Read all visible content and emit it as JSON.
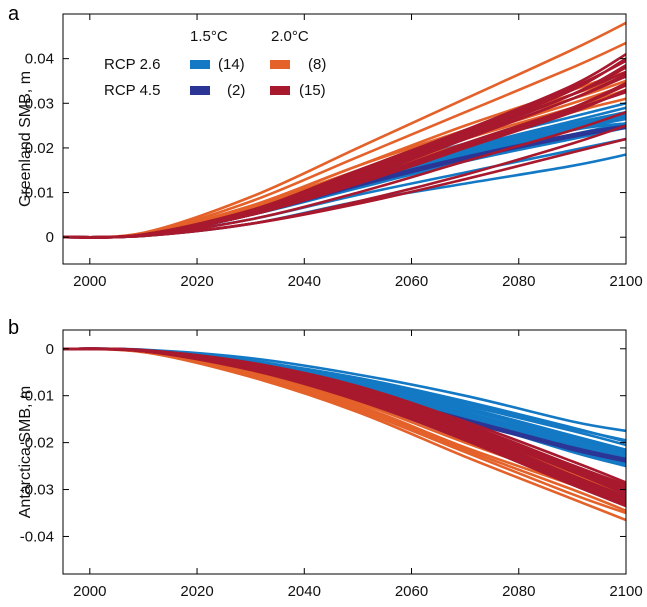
{
  "chart_data": [
    {
      "panel": "a",
      "type": "line",
      "ylabel": "Greenland SMB, m",
      "xlim": [
        1995,
        2100
      ],
      "ylim": [
        -0.006,
        0.05
      ],
      "xticks": [
        "2000",
        "2020",
        "2040",
        "2060",
        "2080",
        "2100"
      ],
      "yticks": [
        "0",
        "0.01",
        "0.02",
        "0.03",
        "0.04"
      ],
      "legend": {
        "placement": "top-left",
        "col_headers": [
          "1.5°C",
          "2.0°C"
        ],
        "rows": [
          {
            "label": "RCP 2.6",
            "entries": [
              {
                "count": "(14)",
                "color": "#1479c4"
              },
              {
                "count": "(8)",
                "color": "#e4612a"
              }
            ]
          },
          {
            "label": "RCP 4.5",
            "entries": [
              {
                "count": "(2)",
                "color": "#2b3595"
              },
              {
                "count": "(15)",
                "color": "#a8192e"
              }
            ]
          }
        ]
      },
      "x": [
        1995,
        2010,
        2030,
        2050,
        2070,
        2090,
        2100
      ],
      "series": [
        {
          "group": "RCP 2.6 1.5°C",
          "color": "#1479c4",
          "lines": [
            [
              0,
              0.0005,
              0.005,
              0.011,
              0.017,
              0.022,
              0.0245
            ],
            [
              0,
              0.0005,
              0.005,
              0.012,
              0.018,
              0.024,
              0.0265
            ],
            [
              0,
              0.0006,
              0.006,
              0.013,
              0.019,
              0.025,
              0.028
            ],
            [
              0,
              0.0006,
              0.006,
              0.013,
              0.02,
              0.026,
              0.029
            ],
            [
              0,
              0.0006,
              0.006,
              0.014,
              0.021,
              0.027,
              0.03
            ],
            [
              0,
              0.0005,
              0.0055,
              0.0125,
              0.0185,
              0.024,
              0.027
            ],
            [
              0,
              0.0005,
              0.005,
              0.012,
              0.019,
              0.0245,
              0.0275
            ],
            [
              0,
              0.0005,
              0.0055,
              0.013,
              0.0195,
              0.025,
              0.0275
            ],
            [
              0,
              0.0006,
              0.006,
              0.0135,
              0.02,
              0.0255,
              0.028
            ],
            [
              0,
              0.0005,
              0.005,
              0.0115,
              0.0175,
              0.023,
              0.0255
            ],
            [
              0,
              0.0004,
              0.004,
              0.0095,
              0.0145,
              0.0195,
              0.022
            ],
            [
              0,
              0.0003,
              0.003,
              0.008,
              0.012,
              0.016,
              0.0185
            ],
            [
              0,
              0.0005,
              0.005,
              0.012,
              0.0185,
              0.024,
              0.0255
            ],
            [
              0,
              0.0005,
              0.0055,
              0.012,
              0.018,
              0.023,
              0.025
            ]
          ]
        },
        {
          "group": "RCP 4.5 1.5°C",
          "color": "#2b3595",
          "lines": [
            [
              0,
              0.0005,
              0.005,
              0.0115,
              0.0175,
              0.0225,
              0.0245
            ],
            [
              0,
              0.0005,
              0.005,
              0.012,
              0.018,
              0.023,
              0.025
            ]
          ]
        },
        {
          "group": "RCP 2.6 2.0°C",
          "color": "#e4612a",
          "lines": [
            [
              0,
              0.001,
              0.009,
              0.02,
              0.031,
              0.042,
              0.048
            ],
            [
              0,
              0.0008,
              0.008,
              0.018,
              0.028,
              0.038,
              0.0435
            ],
            [
              0,
              0.0007,
              0.007,
              0.016,
              0.025,
              0.033,
              0.037
            ],
            [
              0,
              0.0006,
              0.006,
              0.014,
              0.022,
              0.029,
              0.033
            ],
            [
              0,
              0.0007,
              0.007,
              0.015,
              0.024,
              0.031,
              0.035
            ],
            [
              0,
              0.0006,
              0.006,
              0.0135,
              0.021,
              0.028,
              0.031
            ],
            [
              0,
              0.0007,
              0.007,
              0.016,
              0.024,
              0.032,
              0.036
            ],
            [
              0,
              0.0006,
              0.0065,
              0.0145,
              0.0225,
              0.03,
              0.034
            ]
          ]
        },
        {
          "group": "RCP 4.5 2.0°C",
          "color": "#a8192e",
          "lines": [
            [
              0,
              0.0006,
              0.006,
              0.014,
              0.023,
              0.033,
              0.04
            ],
            [
              0,
              0.0006,
              0.006,
              0.015,
              0.024,
              0.034,
              0.041
            ],
            [
              0,
              0.0006,
              0.006,
              0.0145,
              0.0235,
              0.0335,
              0.0395
            ],
            [
              0,
              0.0005,
              0.0055,
              0.013,
              0.022,
              0.031,
              0.036
            ],
            [
              0,
              0.0005,
              0.0055,
              0.0135,
              0.0225,
              0.032,
              0.037
            ],
            [
              0,
              0.0005,
              0.005,
              0.0125,
              0.021,
              0.029,
              0.034
            ],
            [
              0,
              0.0005,
              0.005,
              0.012,
              0.02,
              0.028,
              0.033
            ],
            [
              0,
              0.0005,
              0.005,
              0.0125,
              0.0205,
              0.0285,
              0.0325
            ],
            [
              0,
              0.0004,
              0.004,
              0.01,
              0.017,
              0.024,
              0.028
            ],
            [
              0,
              0.0003,
              0.003,
              0.008,
              0.014,
              0.021,
              0.025
            ],
            [
              0,
              0.0003,
              0.003,
              0.0075,
              0.013,
              0.019,
              0.022
            ],
            [
              0,
              0.0006,
              0.006,
              0.0145,
              0.023,
              0.032,
              0.038
            ],
            [
              0,
              0.0005,
              0.0055,
              0.0135,
              0.022,
              0.031,
              0.0365
            ],
            [
              0,
              0.0006,
              0.006,
              0.014,
              0.0225,
              0.032,
              0.0385
            ],
            [
              0,
              0.0005,
              0.005,
              0.012,
              0.02,
              0.029,
              0.0345
            ]
          ]
        }
      ]
    },
    {
      "panel": "b",
      "type": "line",
      "ylabel": "Antarctica SMB, m",
      "xlim": [
        1995,
        2100
      ],
      "ylim": [
        -0.048,
        0.004
      ],
      "xticks": [
        "2000",
        "2020",
        "2040",
        "2060",
        "2080",
        "2100"
      ],
      "yticks": [
        "0",
        "-0.01",
        "-0.02",
        "-0.03",
        "-0.04"
      ],
      "x": [
        1995,
        2010,
        2030,
        2050,
        2070,
        2090,
        2100
      ],
      "series": [
        {
          "group": "RCP 2.6 1.5°C",
          "color": "#1479c4",
          "lines": [
            [
              0,
              -0.0002,
              -0.002,
              -0.0055,
              -0.01,
              -0.0155,
              -0.0175
            ],
            [
              0,
              -0.0003,
              -0.0025,
              -0.0065,
              -0.0115,
              -0.017,
              -0.0195
            ],
            [
              0,
              -0.0003,
              -0.003,
              -0.007,
              -0.0125,
              -0.0185,
              -0.0215
            ],
            [
              0,
              -0.0003,
              -0.003,
              -0.0075,
              -0.013,
              -0.019,
              -0.022
            ],
            [
              0,
              -0.0004,
              -0.0035,
              -0.008,
              -0.014,
              -0.0205,
              -0.0235
            ],
            [
              0,
              -0.0004,
              -0.0035,
              -0.0085,
              -0.0145,
              -0.021,
              -0.024
            ],
            [
              0,
              -0.0004,
              -0.0035,
              -0.0085,
              -0.015,
              -0.022,
              -0.025
            ],
            [
              0,
              -0.0003,
              -0.003,
              -0.0075,
              -0.0135,
              -0.0195,
              -0.0225
            ],
            [
              0,
              -0.0003,
              -0.0028,
              -0.0068,
              -0.012,
              -0.0175,
              -0.0205
            ],
            [
              0,
              -0.0003,
              -0.003,
              -0.0072,
              -0.0128,
              -0.0188,
              -0.0218
            ],
            [
              0,
              -0.0004,
              -0.0034,
              -0.0082,
              -0.0142,
              -0.0205,
              -0.0238
            ],
            [
              0,
              -0.0003,
              -0.0026,
              -0.0062,
              -0.0112,
              -0.0168,
              -0.0198
            ],
            [
              0,
              -0.0004,
              -0.0036,
              -0.0088,
              -0.015,
              -0.0215,
              -0.0245
            ],
            [
              0,
              -0.0003,
              -0.0032,
              -0.0078,
              -0.0138,
              -0.02,
              -0.023
            ]
          ]
        },
        {
          "group": "RCP 4.5 1.5°C",
          "color": "#2b3595",
          "lines": [
            [
              0,
              -0.0004,
              -0.004,
              -0.009,
              -0.015,
              -0.021,
              -0.0235
            ],
            [
              0,
              -0.0004,
              -0.004,
              -0.0095,
              -0.0155,
              -0.0215,
              -0.024
            ]
          ]
        },
        {
          "group": "RCP 2.6 2.0°C",
          "color": "#e4612a",
          "lines": [
            [
              0,
              -0.0007,
              -0.006,
              -0.0135,
              -0.023,
              -0.032,
              -0.0365
            ],
            [
              0,
              -0.0007,
              -0.0055,
              -0.013,
              -0.022,
              -0.031,
              -0.035
            ],
            [
              0,
              -0.0006,
              -0.005,
              -0.012,
              -0.021,
              -0.029,
              -0.0335
            ],
            [
              0,
              -0.0006,
              -0.005,
              -0.0115,
              -0.02,
              -0.028,
              -0.032
            ],
            [
              0,
              -0.0005,
              -0.0045,
              -0.011,
              -0.019,
              -0.027,
              -0.031
            ],
            [
              0,
              -0.0005,
              -0.004,
              -0.01,
              -0.018,
              -0.026,
              -0.03
            ],
            [
              0,
              -0.0006,
              -0.0055,
              -0.0125,
              -0.0215,
              -0.03,
              -0.0345
            ],
            [
              0,
              -0.0005,
              -0.0045,
              -0.0105,
              -0.0185,
              -0.0265,
              -0.0305
            ]
          ]
        },
        {
          "group": "RCP 4.5 2.0°C",
          "color": "#a8192e",
          "lines": [
            [
              0,
              -0.0003,
              -0.003,
              -0.008,
              -0.0155,
              -0.024,
              -0.0285
            ],
            [
              0,
              -0.0003,
              -0.003,
              -0.008,
              -0.016,
              -0.025,
              -0.0295
            ],
            [
              0,
              -0.0004,
              -0.0035,
              -0.0085,
              -0.0165,
              -0.0255,
              -0.03
            ],
            [
              0,
              -0.0004,
              -0.0035,
              -0.009,
              -0.017,
              -0.026,
              -0.0305
            ],
            [
              0,
              -0.0004,
              -0.0038,
              -0.0092,
              -0.0172,
              -0.0262,
              -0.031
            ],
            [
              0,
              -0.0004,
              -0.004,
              -0.0095,
              -0.0175,
              -0.027,
              -0.0315
            ],
            [
              0,
              -0.0005,
              -0.004,
              -0.01,
              -0.018,
              -0.0275,
              -0.032
            ],
            [
              0,
              -0.0005,
              -0.0042,
              -0.0102,
              -0.0185,
              -0.028,
              -0.0325
            ],
            [
              0,
              -0.0005,
              -0.0045,
              -0.0105,
              -0.019,
              -0.0285,
              -0.033
            ],
            [
              0,
              -0.0005,
              -0.0045,
              -0.011,
              -0.0195,
              -0.029,
              -0.0335
            ],
            [
              0,
              -0.0004,
              -0.0036,
              -0.0088,
              -0.0168,
              -0.0258,
              -0.0302
            ],
            [
              0,
              -0.0004,
              -0.0039,
              -0.0094,
              -0.0178,
              -0.0272,
              -0.0318
            ],
            [
              0,
              -0.0003,
              -0.0032,
              -0.0082,
              -0.016,
              -0.0248,
              -0.029
            ],
            [
              0,
              -0.0005,
              -0.0043,
              -0.0104,
              -0.0188,
              -0.0282,
              -0.0328
            ],
            [
              0,
              -0.0004,
              -0.0037,
              -0.009,
              -0.017,
              -0.026,
              -0.0308
            ]
          ]
        }
      ]
    }
  ]
}
